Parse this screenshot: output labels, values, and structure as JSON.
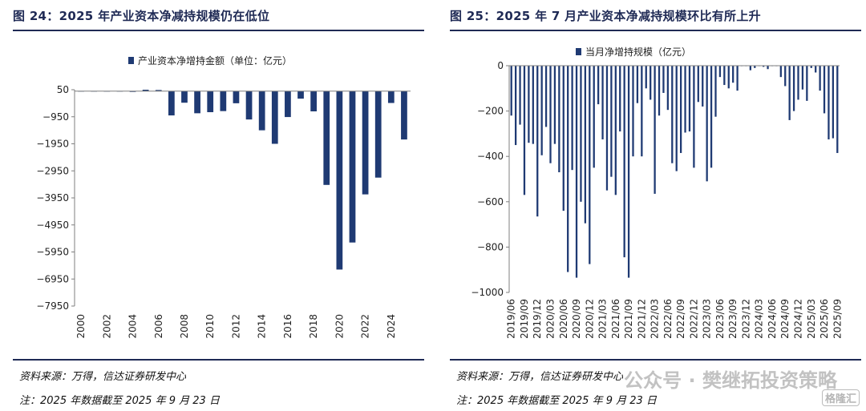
{
  "left": {
    "title": "图 24：2025 年产业资本净减持规模仍在低位",
    "source": "资料来源：万得，信达证券研发中心",
    "note": "注：2025 年数据截至 2025 年 9 月 23 日"
  },
  "right": {
    "title": "图 25：2025 年 7 月产业资本净减持规模环比有所上升",
    "source": "资料来源：万得，信达证券研发中心",
    "note": "注：2025 年数据截至 2025 年 9 月 23 日",
    "watermark": "公众号 · 樊继拓投资策略",
    "logo": "格隆汇"
  },
  "colors": {
    "bar": "#1f3a73",
    "axis": "#7f7f7f",
    "title": "#1f2a55"
  },
  "chart_data": [
    {
      "type": "bar",
      "legend": "产业资本净增持金额（单位：亿元）",
      "legend_position": "top",
      "ylim": [
        -7950,
        50
      ],
      "yticks": [
        50,
        -950,
        -1950,
        -2950,
        -3950,
        -4950,
        -5950,
        -6950,
        -7950
      ],
      "grid": false,
      "categories": [
        "2000",
        "2001",
        "2002",
        "2003",
        "2004",
        "2005",
        "2006",
        "2007",
        "2008",
        "2009",
        "2010",
        "2011",
        "2012",
        "2013",
        "2014",
        "2015",
        "2016",
        "2017",
        "2018",
        "2019",
        "2020",
        "2021",
        "2022",
        "2023",
        "2024",
        "2025"
      ],
      "xtick_labels": [
        "2000",
        "2002",
        "2004",
        "2006",
        "2008",
        "2010",
        "2012",
        "2014",
        "2016",
        "2018",
        "2020",
        "2022",
        "2024"
      ],
      "values": [
        -5,
        -10,
        -12,
        -15,
        -30,
        60,
        40,
        -900,
        -430,
        -820,
        -780,
        -740,
        -450,
        -1050,
        -1450,
        -1950,
        -960,
        -280,
        -750,
        -3470,
        -6600,
        -5600,
        -3820,
        -3200,
        -440,
        -1790
      ]
    },
    {
      "type": "bar",
      "legend": "当月净增持规模（亿元）",
      "legend_position": "top",
      "ylim": [
        -1000,
        0
      ],
      "yticks": [
        0,
        -200,
        -400,
        -600,
        -800,
        -1000
      ],
      "grid": false,
      "xtick_labels": [
        "2019/06",
        "2019/09",
        "2019/12",
        "2020/03",
        "2020/06",
        "2020/09",
        "2020/12",
        "2021/03",
        "2021/06",
        "2021/09",
        "2021/12",
        "2022/03",
        "2022/06",
        "2022/09",
        "2022/12",
        "2023/03",
        "2023/06",
        "2023/09",
        "2023/12",
        "2024/03",
        "2024/06",
        "2024/09",
        "2024/12",
        "2025/03",
        "2025/06",
        "2025/09"
      ],
      "values": [
        -220,
        -350,
        -260,
        -570,
        -340,
        -345,
        -665,
        -395,
        -270,
        -430,
        -345,
        -470,
        -640,
        -910,
        -460,
        -935,
        -600,
        -695,
        -875,
        -450,
        -170,
        -325,
        -550,
        -490,
        -570,
        -290,
        -845,
        -935,
        -400,
        -165,
        -400,
        -100,
        -150,
        -565,
        -220,
        -120,
        -195,
        -430,
        -465,
        -385,
        -295,
        -290,
        -450,
        -160,
        -180,
        -510,
        -450,
        -225,
        -50,
        -85,
        -100,
        -75,
        -110,
        5,
        30,
        -20,
        -10,
        0,
        -5,
        -15,
        30,
        25,
        -50,
        -90,
        -240,
        -200,
        -150,
        -105,
        -155,
        -10,
        -30,
        -110,
        -210,
        -325,
        -320,
        -385
      ]
    }
  ]
}
